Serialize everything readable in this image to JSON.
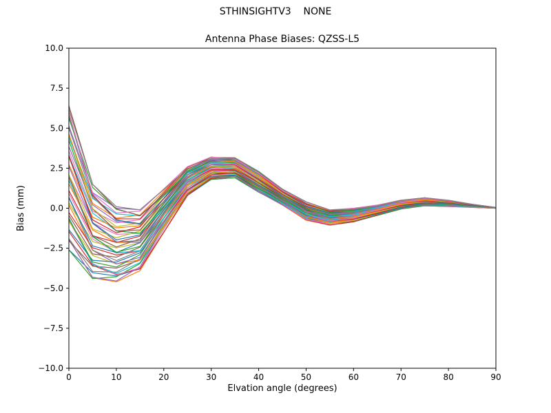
{
  "chart_data": {
    "type": "line",
    "suptitle": "STHINSIGHTV3    NONE",
    "title": "Antenna Phase Biases: QZSS-L5",
    "xlabel": "Elvation angle (degrees)",
    "ylabel": "Bias (mm)",
    "xlim": [
      0,
      90
    ],
    "ylim": [
      -10.0,
      10.0
    ],
    "xticks": [
      0,
      10,
      20,
      30,
      40,
      50,
      60,
      70,
      80,
      90
    ],
    "yticks": [
      -10.0,
      -7.5,
      -5.0,
      -2.5,
      0.0,
      2.5,
      5.0,
      7.5,
      10.0
    ],
    "grid": false,
    "legend_position": "none",
    "x": [
      0,
      5,
      10,
      15,
      20,
      25,
      30,
      35,
      40,
      45,
      50,
      55,
      60,
      65,
      70,
      75,
      80,
      85,
      90
    ],
    "envelope_upper": [
      6.4,
      1.5,
      0.1,
      -0.1,
      1.2,
      2.6,
      3.2,
      3.15,
      2.3,
      1.2,
      0.4,
      -0.1,
      0.0,
      0.2,
      0.5,
      0.65,
      0.5,
      0.25,
      0.05
    ],
    "envelope_lower": [
      -2.6,
      -4.4,
      -4.6,
      -3.9,
      -1.5,
      0.8,
      1.8,
      1.9,
      1.0,
      0.2,
      -0.75,
      -1.05,
      -0.85,
      -0.45,
      -0.05,
      0.15,
      0.1,
      0.05,
      0.0
    ],
    "num_lines": 48,
    "colors": [
      "#1f77b4",
      "#ff7f0e",
      "#2ca02c",
      "#d62728",
      "#9467bd",
      "#8c564b",
      "#e377c2",
      "#7f7f7f",
      "#bcbd22",
      "#17becf"
    ],
    "axis_color": "#000000",
    "background_color": "#ffffff"
  }
}
